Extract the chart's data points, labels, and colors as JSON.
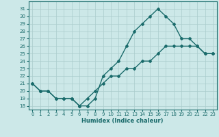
{
  "xlabel": "Humidex (Indice chaleur)",
  "bg_color": "#cce8e8",
  "line_color": "#1a6b6b",
  "grid_color": "#aacccc",
  "x_curve1": [
    0,
    1,
    2,
    3,
    4,
    5,
    6,
    7,
    8,
    9,
    10,
    11,
    12,
    13,
    14,
    15,
    16,
    17,
    18,
    19,
    20,
    21,
    22,
    23
  ],
  "y_curve1": [
    21,
    20,
    20,
    19,
    19,
    19,
    18,
    18,
    19,
    22,
    23,
    24,
    26,
    28,
    29,
    30,
    31,
    30,
    29,
    27,
    27,
    26,
    25,
    25
  ],
  "x_curve2": [
    0,
    1,
    2,
    3,
    4,
    5,
    6,
    7,
    8,
    9,
    10,
    11,
    12,
    13,
    14,
    15,
    16,
    17,
    18,
    19,
    20,
    21,
    22,
    23
  ],
  "y_curve2": [
    21,
    20,
    20,
    19,
    19,
    19,
    18,
    19,
    20,
    21,
    22,
    22,
    23,
    23,
    24,
    24,
    25,
    26,
    26,
    26,
    26,
    26,
    25,
    25
  ],
  "xlim": [
    -0.5,
    23.5
  ],
  "ylim": [
    17.5,
    32
  ],
  "yticks": [
    18,
    19,
    20,
    21,
    22,
    23,
    24,
    25,
    26,
    27,
    28,
    29,
    30,
    31
  ],
  "xticks": [
    0,
    1,
    2,
    3,
    4,
    5,
    6,
    7,
    8,
    9,
    10,
    11,
    12,
    13,
    14,
    15,
    16,
    17,
    18,
    19,
    20,
    21,
    22,
    23
  ],
  "marker": "D",
  "marker_size": 2,
  "line_width": 1.0,
  "tick_fontsize": 5.0,
  "xlabel_fontsize": 6.0
}
